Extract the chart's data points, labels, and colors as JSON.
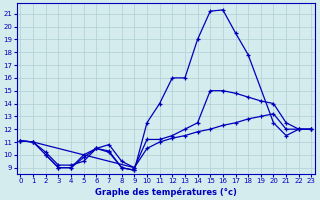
{
  "bg_color": "#d4ecee",
  "grid_color": "#b0d0d4",
  "line_color": "#0000bb",
  "xlabel": "Graphe des températures (°c)",
  "xlim": [
    -0.3,
    23.3
  ],
  "ylim": [
    8.5,
    21.8
  ],
  "xticks": [
    0,
    1,
    2,
    3,
    4,
    5,
    6,
    7,
    8,
    9,
    10,
    11,
    12,
    13,
    14,
    15,
    16,
    17,
    18,
    19,
    20,
    21,
    22,
    23
  ],
  "yticks": [
    9,
    10,
    11,
    12,
    13,
    14,
    15,
    16,
    17,
    18,
    19,
    20,
    21
  ],
  "line1_x": [
    0,
    1,
    2,
    3,
    4,
    5,
    6,
    7,
    8,
    9,
    10,
    11,
    12,
    13,
    14,
    15,
    16,
    17,
    18,
    20,
    21,
    22,
    23
  ],
  "line1_y": [
    11.1,
    11.0,
    10.0,
    9.0,
    9.0,
    10.0,
    10.5,
    10.2,
    9.0,
    8.8,
    12.5,
    14.0,
    16.0,
    16.0,
    19.0,
    21.2,
    21.3,
    19.5,
    17.8,
    12.5,
    11.5,
    12.0,
    12.0
  ],
  "line2_x": [
    0,
    1,
    9,
    10,
    11,
    12,
    13,
    14,
    15,
    16,
    17,
    18,
    19,
    20,
    21,
    22,
    23
  ],
  "line2_y": [
    11.1,
    11.0,
    9.0,
    11.2,
    11.2,
    11.5,
    12.0,
    12.5,
    15.0,
    15.0,
    14.8,
    14.5,
    14.2,
    14.0,
    12.5,
    12.0,
    12.0
  ],
  "line3_x": [
    0,
    1,
    2,
    3,
    4,
    5,
    6,
    7,
    8,
    9,
    10,
    11,
    12,
    13,
    14,
    15,
    16,
    17,
    18,
    19,
    20,
    21,
    22,
    23
  ],
  "line3_y": [
    11.1,
    11.0,
    10.2,
    9.2,
    9.2,
    9.5,
    10.5,
    10.8,
    9.5,
    9.0,
    10.5,
    11.0,
    11.3,
    11.5,
    11.8,
    12.0,
    12.3,
    12.5,
    12.8,
    13.0,
    13.2,
    12.0,
    12.0,
    12.0
  ],
  "line4_x": [
    2,
    3,
    4,
    5,
    6,
    7,
    8,
    9
  ],
  "line4_y": [
    10.0,
    9.0,
    9.0,
    9.8,
    10.5,
    10.3,
    9.0,
    8.8
  ]
}
